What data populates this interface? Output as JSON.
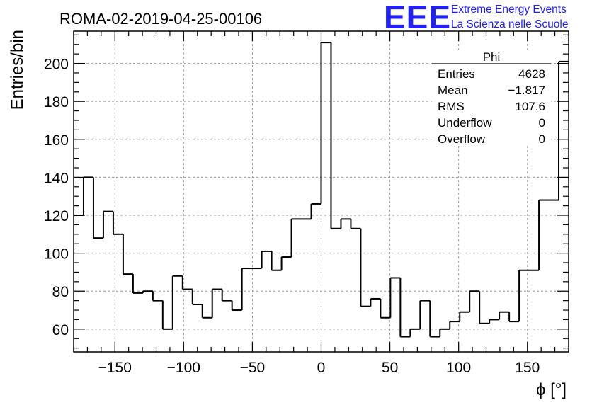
{
  "chart_data": {
    "type": "bar",
    "title": "ROMA-02-2019-04-25-00106",
    "xlabel": "ϕ [°]",
    "ylabel": "Entries/bin",
    "xlim": [
      -180,
      180
    ],
    "ylim": [
      48,
      217
    ],
    "bin_width": 7.2,
    "bin_edges_start": -180,
    "x_ticks": [
      -150,
      -100,
      -50,
      0,
      50,
      100,
      150
    ],
    "x_tick_labels": [
      "−150",
      "−100",
      "−50",
      "0",
      "50",
      "100",
      "150"
    ],
    "y_ticks": [
      60,
      80,
      100,
      120,
      140,
      160,
      180,
      200
    ],
    "y_tick_labels": [
      "60",
      "80",
      "100",
      "120",
      "140",
      "160",
      "180",
      "200"
    ],
    "grid": true,
    "values": [
      120,
      140,
      108,
      122,
      110,
      89,
      79,
      80,
      75,
      60,
      88,
      81,
      73,
      66,
      81,
      75,
      70,
      92,
      92,
      101,
      91,
      98,
      118,
      118,
      126,
      211,
      113,
      118,
      113,
      72,
      76,
      66,
      87,
      56,
      60,
      75,
      56,
      60,
      64,
      69,
      80,
      63,
      65,
      69,
      64,
      91,
      91,
      128,
      128,
      201
    ],
    "stats": {
      "name": "Phi",
      "rows": [
        {
          "label": "Entries",
          "value": "4628"
        },
        {
          "label": "Mean",
          "value": "−1.817"
        },
        {
          "label": "RMS",
          "value": "107.6"
        },
        {
          "label": "Underflow",
          "value": "0"
        },
        {
          "label": "Overflow",
          "value": "0"
        }
      ]
    }
  },
  "logo": {
    "mark": "EEE",
    "line1": "Extreme Energy Events",
    "line2": "La Scienza nelle Scuole",
    "color": "#2222ee"
  }
}
